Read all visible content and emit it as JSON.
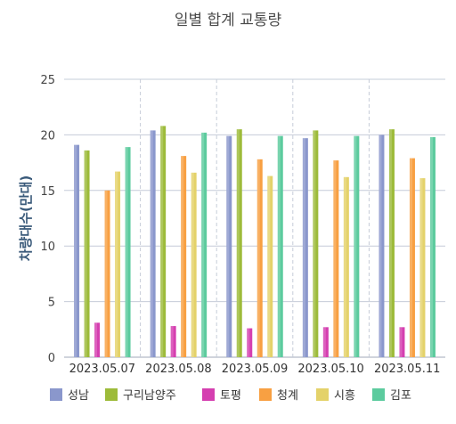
{
  "chart_data": {
    "type": "bar",
    "title": "일별 합계 교통량",
    "ylabel": "차량대수(만대)",
    "xlabel": "",
    "ylim": [
      0,
      25
    ],
    "yticks": [
      0,
      5,
      10,
      15,
      20,
      25
    ],
    "grid": true,
    "legend_position": "bottom",
    "categories": [
      "2023.05.07",
      "2023.05.08",
      "2023.05.09",
      "2023.05.10",
      "2023.05.11"
    ],
    "series": [
      {
        "name": "성남",
        "color": "#8a97cc",
        "values": [
          19.1,
          20.4,
          19.9,
          19.7,
          20.0
        ]
      },
      {
        "name": "구리남양주",
        "color": "#9dbb3a",
        "values": [
          18.6,
          20.8,
          20.5,
          20.4,
          20.5
        ]
      },
      {
        "name": "토평",
        "color": "#d53fb0",
        "values": [
          3.1,
          2.8,
          2.6,
          2.7,
          2.7
        ]
      },
      {
        "name": "청계",
        "color": "#f8a042",
        "values": [
          15.0,
          18.1,
          17.8,
          17.7,
          17.9
        ]
      },
      {
        "name": "시흥",
        "color": "#e4d26a",
        "values": [
          16.7,
          16.6,
          16.3,
          16.2,
          16.1
        ]
      },
      {
        "name": "김포",
        "color": "#5ccb9e",
        "values": [
          18.9,
          20.2,
          19.9,
          19.9,
          19.8
        ]
      }
    ]
  }
}
